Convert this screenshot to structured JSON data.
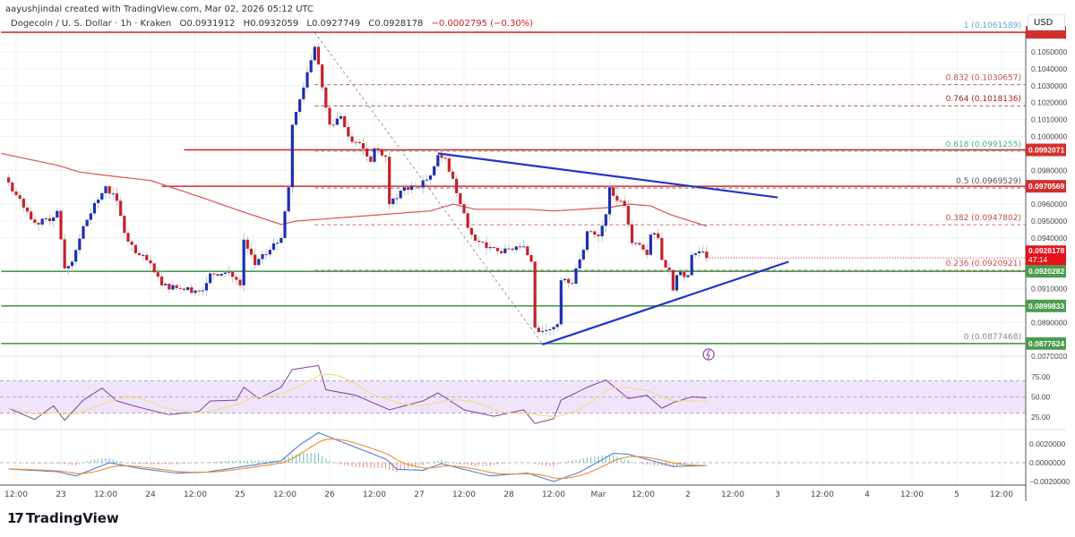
{
  "header": {
    "credit": "aayushjindal created with TradingView.com, Mar 02, 2026 05:12 UTC",
    "symbol": "Dogecoin / U. S. Dollar · 1h · Kraken",
    "open": "O0.0931912",
    "high": "H0.0932059",
    "low": "L0.0927749",
    "close": "C0.0928178",
    "change": "−0.0002795 (−0.30%)"
  },
  "axis": {
    "currency": "USD"
  },
  "logo": {
    "text": "TradingView",
    "mark": "17"
  },
  "colors": {
    "up": "#1a2fb5",
    "down": "#c8202a",
    "ma": "#d9534f",
    "support": "#4a9c4e",
    "resistance": "#d32f2f",
    "trend": "#1f35c9",
    "rsi": "#7e3f98",
    "rsi_ma": "#f3dd8a",
    "rsi_band": "#f0e4fb",
    "macd": "#4a7fd6",
    "signal": "#f08a2c",
    "hist_up": "#26a69a",
    "hist_down": "#ef5350"
  },
  "chart_data": {
    "type": "candlestick",
    "timeframe": "1h",
    "ylim": [
      0.0865,
      0.1063
    ],
    "price_ticks": [
      "0.1050000",
      "0.1040000",
      "0.1030000",
      "0.1020000",
      "0.1010000",
      "0.1000000",
      "0.0980000",
      "0.0960000",
      "0.0950000",
      "0.0940000",
      "0.0910000",
      "0.0890000",
      "0.0870000"
    ],
    "time_ticks": [
      {
        "t": "2026-02-22T12",
        "label": "12:00"
      },
      {
        "t": "2026-02-23T00",
        "label": "23"
      },
      {
        "t": "2026-02-23T12",
        "label": "12:00"
      },
      {
        "t": "2026-02-24T00",
        "label": "24"
      },
      {
        "t": "2026-02-24T12",
        "label": "12:00"
      },
      {
        "t": "2026-02-25T00",
        "label": "25"
      },
      {
        "t": "2026-02-25T12",
        "label": "12:00"
      },
      {
        "t": "2026-02-26T00",
        "label": "26"
      },
      {
        "t": "2026-02-26T12",
        "label": "12:00"
      },
      {
        "t": "2026-02-27T00",
        "label": "27"
      },
      {
        "t": "2026-02-27T12",
        "label": "12:00"
      },
      {
        "t": "2026-02-28T00",
        "label": "28"
      },
      {
        "t": "2026-02-28T12",
        "label": "12:00"
      },
      {
        "t": "2026-03-01T00",
        "label": "Mar"
      },
      {
        "t": "2026-03-01T12",
        "label": "12:00"
      },
      {
        "t": "2026-03-02T00",
        "label": "2"
      },
      {
        "t": "2026-03-02T12",
        "label": "12:00"
      },
      {
        "t": "2026-03-03T00",
        "label": "3"
      },
      {
        "t": "2026-03-03T12",
        "label": "12:00"
      },
      {
        "t": "2026-03-04T00",
        "label": "4"
      },
      {
        "t": "2026-03-04T12",
        "label": "12:00"
      },
      {
        "t": "2026-03-05T00",
        "label": "5"
      },
      {
        "t": "2026-03-05T12",
        "label": "12:00"
      }
    ],
    "close_path": [
      [
        "2026-02-22T10",
        0.09728
      ],
      [
        "2026-02-22T12",
        0.09653
      ],
      [
        "2026-02-22T14",
        0.0958
      ],
      [
        "2026-02-22T17",
        0.0949
      ],
      [
        "2026-02-22T21",
        0.095
      ],
      [
        "2026-02-22T23",
        0.0956
      ],
      [
        "2026-02-23T01",
        0.0922
      ],
      [
        "2026-02-23T03",
        0.0926
      ],
      [
        "2026-02-23T06",
        0.0947
      ],
      [
        "2026-02-23T12",
        0.09706
      ],
      [
        "2026-02-23T15",
        0.0962
      ],
      [
        "2026-02-23T17",
        0.0943
      ],
      [
        "2026-02-23T20",
        0.0931
      ],
      [
        "2026-02-24T00",
        0.0925
      ],
      [
        "2026-02-24T03",
        0.0912
      ],
      [
        "2026-02-24T08",
        0.091
      ],
      [
        "2026-02-24T14",
        0.0909
      ],
      [
        "2026-02-24T16",
        0.0919
      ],
      [
        "2026-02-24T21",
        0.092
      ],
      [
        "2026-02-25T00",
        0.0912
      ],
      [
        "2026-02-25T01",
        0.0939
      ],
      [
        "2026-02-25T04",
        0.0924
      ],
      [
        "2026-02-25T08",
        0.0933
      ],
      [
        "2026-02-25T11",
        0.094
      ],
      [
        "2026-02-25T13",
        0.097
      ],
      [
        "2026-02-25T14",
        0.1007
      ],
      [
        "2026-02-25T16",
        0.1022
      ],
      [
        "2026-02-25T18",
        0.1038
      ],
      [
        "2026-02-25T20",
        0.1053
      ],
      [
        "2026-02-25T22",
        0.1029
      ],
      [
        "2026-02-26T00",
        0.1007
      ],
      [
        "2026-02-26T03",
        0.1012
      ],
      [
        "2026-02-26T05",
        0.1
      ],
      [
        "2026-02-26T08",
        0.0996
      ],
      [
        "2026-02-26T11",
        0.0985
      ],
      [
        "2026-02-26T12",
        0.0993
      ],
      [
        "2026-02-26T15",
        0.0988
      ],
      [
        "2026-02-26T16",
        0.096
      ],
      [
        "2026-02-26T20",
        0.097
      ],
      [
        "2026-02-27T00",
        0.097
      ],
      [
        "2026-02-27T03",
        0.0977
      ],
      [
        "2026-02-27T05",
        0.0989
      ],
      [
        "2026-02-27T07",
        0.0987
      ],
      [
        "2026-02-27T09",
        0.0975
      ],
      [
        "2026-02-27T11",
        0.096
      ],
      [
        "2026-02-27T14",
        0.0942
      ],
      [
        "2026-02-27T18",
        0.0934
      ],
      [
        "2026-02-27T22",
        0.0931
      ],
      [
        "2026-02-28T02",
        0.0935
      ],
      [
        "2026-02-28T04",
        0.0935
      ],
      [
        "2026-02-28T06",
        0.0926
      ],
      [
        "2026-02-28T07",
        0.0887
      ],
      [
        "2026-02-28T09",
        0.0885
      ],
      [
        "2026-02-28T11",
        0.0886
      ],
      [
        "2026-02-28T13",
        0.0889
      ],
      [
        "2026-02-28T14",
        0.0915
      ],
      [
        "2026-02-28T17",
        0.0913
      ],
      [
        "2026-02-28T18",
        0.0922
      ],
      [
        "2026-02-28T20",
        0.0933
      ],
      [
        "2026-02-28T21",
        0.0944
      ],
      [
        "2026-03-01T00",
        0.0941
      ],
      [
        "2026-03-01T02",
        0.0954
      ],
      [
        "2026-03-01T03",
        0.097
      ],
      [
        "2026-03-01T05",
        0.0962
      ],
      [
        "2026-03-01T07",
        0.0959
      ],
      [
        "2026-03-01T08",
        0.0948
      ],
      [
        "2026-03-01T09",
        0.0937
      ],
      [
        "2026-03-01T11",
        0.0936
      ],
      [
        "2026-03-01T13",
        0.093
      ],
      [
        "2026-03-01T14",
        0.0942
      ],
      [
        "2026-03-01T16",
        0.094
      ],
      [
        "2026-03-01T17",
        0.0927
      ],
      [
        "2026-03-01T19",
        0.0921
      ],
      [
        "2026-03-01T20",
        0.0909
      ],
      [
        "2026-03-01T21",
        0.0918
      ],
      [
        "2026-03-02T00",
        0.0918
      ],
      [
        "2026-03-02T01",
        0.093
      ],
      [
        "2026-03-02T03",
        0.0932
      ],
      [
        "2026-03-02T04",
        0.0932
      ],
      [
        "2026-03-02T05",
        0.0928178
      ]
    ],
    "moving_average": [
      [
        "2026-02-22T08",
        0.099
      ],
      [
        "2026-02-22T23",
        0.0983
      ],
      [
        "2026-02-23T05",
        0.0979
      ],
      [
        "2026-02-23T12",
        0.0977
      ],
      [
        "2026-02-24T00",
        0.0974
      ],
      [
        "2026-02-24T15",
        0.0963
      ],
      [
        "2026-02-25T00",
        0.0956
      ],
      [
        "2026-02-25T11",
        0.0948
      ],
      [
        "2026-02-25T15",
        0.095
      ],
      [
        "2026-02-26T03",
        0.0952
      ],
      [
        "2026-02-27T03",
        0.0956
      ],
      [
        "2026-02-27T09",
        0.096
      ],
      [
        "2026-02-27T15",
        0.0957
      ],
      [
        "2026-02-28T05",
        0.0957
      ],
      [
        "2026-02-28T12",
        0.0956
      ],
      [
        "2026-03-01T03",
        0.0958
      ],
      [
        "2026-03-01T08",
        0.096
      ],
      [
        "2026-03-01T14",
        0.0959
      ],
      [
        "2026-03-01T19",
        0.0954
      ],
      [
        "2026-03-02T05",
        0.0947
      ]
    ],
    "horizontal_levels": [
      {
        "price": 0.1061589,
        "kind": "resistance",
        "from": "2026-02-22T08",
        "badge": ""
      },
      {
        "price": 0.0992071,
        "kind": "resistance",
        "from": "2026-02-24T09",
        "badge": "0.0992071"
      },
      {
        "price": 0.0970569,
        "kind": "resistance",
        "from": "2026-02-24T03",
        "badge": "0.0970569"
      },
      {
        "price": 0.0920282,
        "kind": "support",
        "from": "2026-02-22T08",
        "badge": "0.0920282"
      },
      {
        "price": 0.0899833,
        "kind": "support",
        "from": "2026-02-22T08",
        "badge": "0.0899833"
      },
      {
        "price": 0.0877624,
        "kind": "support",
        "from": "2026-02-22T08",
        "badge": "0.0877624"
      }
    ],
    "last_price": {
      "price": 0.0928178,
      "label": "0.0928178",
      "countdown": "47:14"
    },
    "fibonacci": {
      "from": [
        "2026-02-25T20",
        0.1061589
      ],
      "to": [
        "2026-02-28T09",
        0.0877468
      ],
      "levels": [
        {
          "ratio": 1,
          "price": 0.1061589,
          "label": "1 (0.1061589)",
          "color": "#5aa7d6"
        },
        {
          "ratio": 0.832,
          "price": 0.1030657,
          "label": "0.832 (0.1030657)",
          "color": "#c0504d"
        },
        {
          "ratio": 0.764,
          "price": 0.1018136,
          "label": "0.764 (0.1018136)",
          "color": "#a0242a"
        },
        {
          "ratio": 0.618,
          "price": 0.0991255,
          "label": "0.618 (0.0991255)",
          "color": "#3fb58a"
        },
        {
          "ratio": 0.5,
          "price": 0.0969529,
          "label": "0.5 (0.0969529)",
          "color": "#555555"
        },
        {
          "ratio": 0.382,
          "price": 0.0947802,
          "label": "0.382 (0.0947802)",
          "color": "#c0504d"
        },
        {
          "ratio": 0.236,
          "price": 0.0920921,
          "label": "0.236 (0.0920921)",
          "color": "#c0504d"
        },
        {
          "ratio": 0,
          "price": 0.0877468,
          "label": "0 (0.0877468)",
          "color": "#888888"
        }
      ]
    },
    "trend_lines": [
      {
        "name": "",
        "from": [
          "2026-02-27T05",
          0.099
        ],
        "to": [
          "2026-03-03T00",
          0.0964
        ]
      },
      {
        "name": "",
        "from": [
          "2026-02-28T09",
          0.0877
        ],
        "to": [
          "2026-03-03T03",
          0.0926
        ]
      }
    ],
    "rsi": {
      "ticks": [
        "75.00",
        "50.00",
        "25.00"
      ],
      "band": [
        30,
        70
      ],
      "values": [
        [
          "2026-02-22T10",
          36
        ],
        [
          "2026-02-22T17",
          22
        ],
        [
          "2026-02-22T22",
          39
        ],
        [
          "2026-02-23T01",
          21
        ],
        [
          "2026-02-23T06",
          46
        ],
        [
          "2026-02-23T11",
          61
        ],
        [
          "2026-02-23T15",
          45
        ],
        [
          "2026-02-23T21",
          37
        ],
        [
          "2026-02-24T05",
          28
        ],
        [
          "2026-02-24T13",
          32
        ],
        [
          "2026-02-24T16",
          45
        ],
        [
          "2026-02-24T23",
          46
        ],
        [
          "2026-02-25T01",
          62
        ],
        [
          "2026-02-25T05",
          48
        ],
        [
          "2026-02-25T11",
          62
        ],
        [
          "2026-02-25T14",
          84
        ],
        [
          "2026-02-25T21",
          89
        ],
        [
          "2026-02-25T23",
          59
        ],
        [
          "2026-02-26T07",
          52
        ],
        [
          "2026-02-26T16",
          34
        ],
        [
          "2026-02-27T01",
          45
        ],
        [
          "2026-02-27T05",
          55
        ],
        [
          "2026-02-27T12",
          34
        ],
        [
          "2026-02-27T20",
          26
        ],
        [
          "2026-02-28T04",
          34
        ],
        [
          "2026-02-28T07",
          17
        ],
        [
          "2026-02-28T12",
          23
        ],
        [
          "2026-02-28T14",
          46
        ],
        [
          "2026-02-28T21",
          62
        ],
        [
          "2026-03-01T02",
          71
        ],
        [
          "2026-03-01T08",
          48
        ],
        [
          "2026-03-01T13",
          52
        ],
        [
          "2026-03-01T17",
          36
        ],
        [
          "2026-03-01T20",
          43
        ],
        [
          "2026-03-02T01",
          50
        ],
        [
          "2026-03-02T05",
          49
        ]
      ]
    },
    "macd": {
      "ticks": [
        "0.0020000",
        "0.0000000",
        "−0.0020000"
      ],
      "values": [
        [
          "2026-02-22T10",
          -0.00067
        ],
        [
          "2026-02-22T23",
          -0.00095
        ],
        [
          "2026-02-23T04",
          -0.0014
        ],
        [
          "2026-02-23T13",
          0.0
        ],
        [
          "2026-02-23T21",
          -0.0006
        ],
        [
          "2026-02-24T07",
          -0.0011
        ],
        [
          "2026-02-24T15",
          -0.001
        ],
        [
          "2026-02-25T01",
          -0.0004
        ],
        [
          "2026-02-25T11",
          0.0002
        ],
        [
          "2026-02-25T16",
          0.0019
        ],
        [
          "2026-02-25T21",
          0.0032
        ],
        [
          "2026-02-26T02",
          0.0024
        ],
        [
          "2026-02-26T15",
          0.0004
        ],
        [
          "2026-02-26T18",
          -0.0007
        ],
        [
          "2026-02-27T01",
          -0.0008
        ],
        [
          "2026-02-27T06",
          -0.0001
        ],
        [
          "2026-02-27T19",
          -0.0014
        ],
        [
          "2026-02-28T05",
          -0.0011
        ],
        [
          "2026-02-28T12",
          -0.002
        ],
        [
          "2026-02-28T19",
          -0.001
        ],
        [
          "2026-03-01T04",
          0.001
        ],
        [
          "2026-03-01T08",
          0.0009
        ],
        [
          "2026-03-01T20",
          -0.0004
        ],
        [
          "2026-03-02T05",
          -0.0003
        ]
      ]
    }
  }
}
